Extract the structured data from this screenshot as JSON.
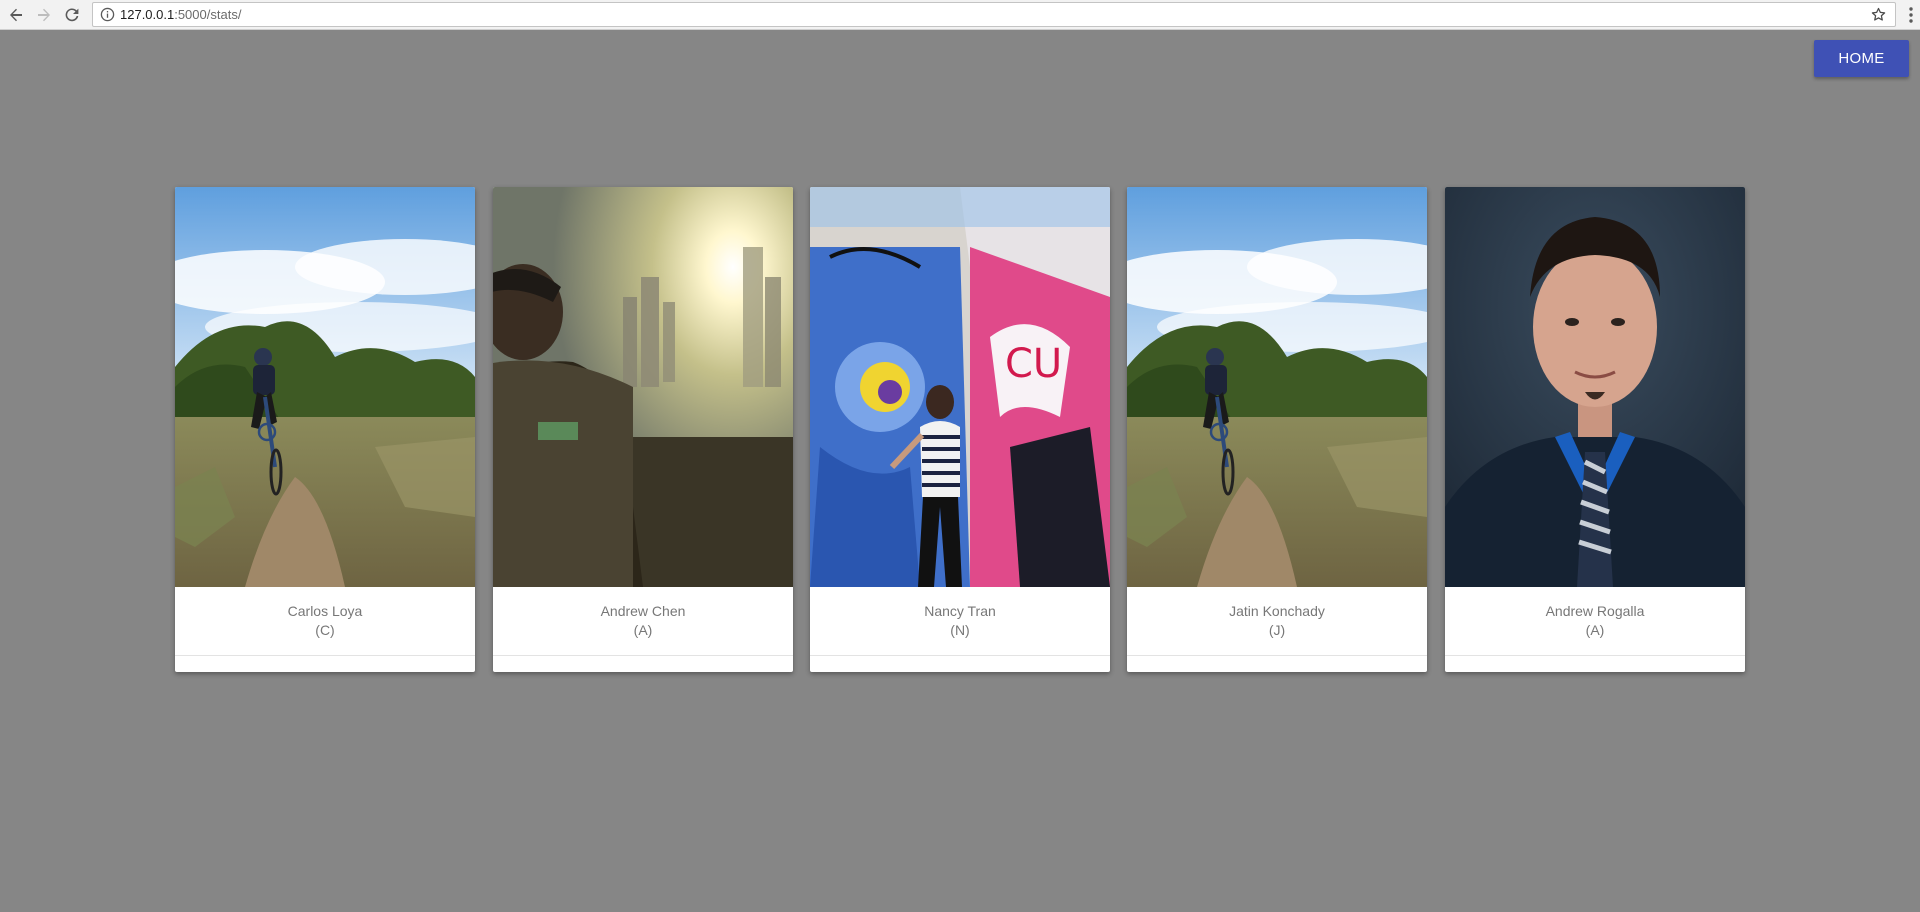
{
  "browser": {
    "url_host": "127.0.0.1",
    "url_path": ":5000/stats/",
    "icons": [
      "back-icon",
      "forward-icon",
      "reload-icon",
      "info-icon",
      "star-icon",
      "menu-icon"
    ]
  },
  "header": {
    "home_label": "HOME"
  },
  "colors": {
    "background": "#868686",
    "home_button": "#3f51b5"
  },
  "cards": [
    {
      "name": "Carlos Loya",
      "initial": "(C)"
    },
    {
      "name": "Andrew Chen",
      "initial": "(A)"
    },
    {
      "name": "Nancy Tran",
      "initial": "(N)"
    },
    {
      "name": "Jatin Konchady",
      "initial": "(J)"
    },
    {
      "name": "Andrew Rogalla",
      "initial": "(A)"
    }
  ]
}
